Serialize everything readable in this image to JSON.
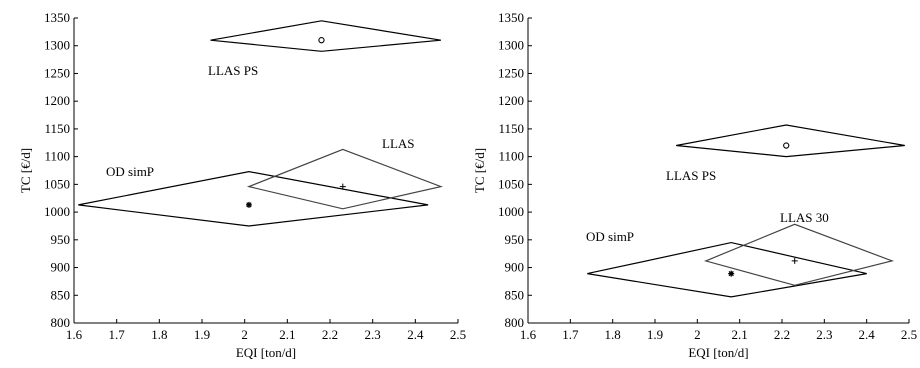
{
  "chart_data": [
    {
      "type": "scatter",
      "title": "",
      "xlabel": "EQI [ton/d]",
      "ylabel": "TC [€/d]",
      "xlim": [
        1.6,
        2.5
      ],
      "ylim": [
        800,
        1350
      ],
      "xticks": [
        "1.6",
        "1.7",
        "1.8",
        "1.9",
        "2",
        "2.1",
        "2.2",
        "2.3",
        "2.4",
        "2.5"
      ],
      "yticks": [
        "800",
        "850",
        "900",
        "950",
        "1000",
        "1050",
        "1100",
        "1150",
        "1200",
        "1250",
        "1300",
        "1350"
      ],
      "grid": false,
      "series": [
        {
          "name": "LLAS PS",
          "marker": "o",
          "point": {
            "x": 2.18,
            "y": 1310
          },
          "diamond": [
            [
              1.92,
              1310
            ],
            [
              2.18,
              1345
            ],
            [
              2.46,
              1310
            ],
            [
              2.18,
              1290
            ]
          ],
          "color": "#000000"
        },
        {
          "name": "OD simP",
          "marker": "*",
          "point": {
            "x": 2.01,
            "y": 1013
          },
          "diamond": [
            [
              1.61,
              1013
            ],
            [
              2.01,
              1073
            ],
            [
              2.43,
              1013
            ],
            [
              2.01,
              975
            ]
          ],
          "color": "#000000"
        },
        {
          "name": "LLAS",
          "marker": "+",
          "point": {
            "x": 2.23,
            "y": 1046
          },
          "diamond": [
            [
              2.01,
              1046
            ],
            [
              2.23,
              1113
            ],
            [
              2.46,
              1046
            ],
            [
              2.23,
              1006
            ]
          ],
          "color": "#444444"
        }
      ]
    },
    {
      "type": "scatter",
      "title": "",
      "xlabel": "EQI [ton/d]",
      "ylabel": "TC [€/d]",
      "xlim": [
        1.6,
        2.5
      ],
      "ylim": [
        800,
        1350
      ],
      "xticks": [
        "1.6",
        "1.7",
        "1.8",
        "1.9",
        "2",
        "2.1",
        "2.2",
        "2.3",
        "2.4",
        "2.5"
      ],
      "yticks": [
        "800",
        "850",
        "900",
        "950",
        "1000",
        "1050",
        "1100",
        "1150",
        "1200",
        "1250",
        "1300",
        "1350"
      ],
      "grid": false,
      "series": [
        {
          "name": "LLAS PS",
          "marker": "o",
          "point": {
            "x": 2.21,
            "y": 1120
          },
          "diamond": [
            [
              1.95,
              1120
            ],
            [
              2.21,
              1157
            ],
            [
              2.49,
              1120
            ],
            [
              2.21,
              1100
            ]
          ],
          "color": "#000000"
        },
        {
          "name": "OD simP",
          "marker": "*",
          "point": {
            "x": 2.08,
            "y": 889
          },
          "diamond": [
            [
              1.74,
              889
            ],
            [
              2.08,
              945
            ],
            [
              2.4,
              889
            ],
            [
              2.08,
              847
            ]
          ],
          "color": "#000000"
        },
        {
          "name": "LLAS 30",
          "marker": "+",
          "point": {
            "x": 2.23,
            "y": 912
          },
          "diamond": [
            [
              2.02,
              912
            ],
            [
              2.23,
              978
            ],
            [
              2.46,
              912
            ],
            [
              2.23,
              868
            ]
          ],
          "color": "#444444"
        }
      ]
    }
  ]
}
